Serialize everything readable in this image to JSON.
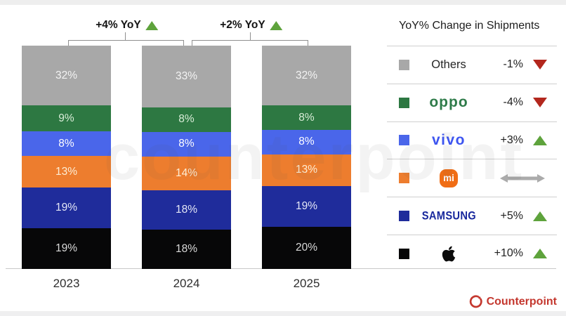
{
  "chart_data": {
    "type": "bar",
    "stacked": true,
    "unit": "percent",
    "value_suffix": "%",
    "categories": [
      "2023",
      "2024",
      "2025"
    ],
    "series_order": "top-to-bottom",
    "series": [
      {
        "name": "Others",
        "color": "#a8a8a8",
        "label_color": "#f3f3f3",
        "values": [
          32,
          33,
          32
        ]
      },
      {
        "name": "OPPO",
        "color": "#2d7842",
        "label_color": "#d9edd8",
        "values": [
          9,
          8,
          8
        ]
      },
      {
        "name": "vivo",
        "color": "#4a66ea",
        "label_color": "#ffffff",
        "values": [
          8,
          8,
          8
        ]
      },
      {
        "name": "Xiaomi",
        "color": "#ed7d2e",
        "label_color": "#fdeed6",
        "values": [
          13,
          14,
          13
        ]
      },
      {
        "name": "Samsung",
        "color": "#1f2c9b",
        "label_color": "#e4e7f6",
        "values": [
          19,
          18,
          19
        ]
      },
      {
        "name": "Apple",
        "color": "#070708",
        "label_color": "#d9d9d9",
        "values": [
          19,
          18,
          20
        ]
      }
    ],
    "annotations": [
      {
        "label": "+4% YoY",
        "between": [
          "2023",
          "2024"
        ],
        "direction": "up"
      },
      {
        "label": "+2% YoY",
        "between": [
          "2024",
          "2025"
        ],
        "direction": "up"
      }
    ]
  },
  "legend": {
    "title": "YoY% Change in Shipments",
    "rows": [
      {
        "name": "Others",
        "swatch": "#a8a8a8",
        "change": "-1%",
        "direction": "down"
      },
      {
        "name": "OPPO",
        "swatch": "#2d7842",
        "change": "-4%",
        "direction": "down",
        "logo_text": "oppo"
      },
      {
        "name": "vivo",
        "swatch": "#4a66ea",
        "change": "+3%",
        "direction": "up",
        "logo_text": "vivo"
      },
      {
        "name": "Xiaomi",
        "swatch": "#ed7d2e",
        "change": "",
        "direction": "flat",
        "logo_text": "mi"
      },
      {
        "name": "Samsung",
        "swatch": "#1f2c9b",
        "change": "+5%",
        "direction": "up",
        "logo_text": "SAMSUNG"
      },
      {
        "name": "Apple",
        "swatch": "#070708",
        "change": "+10%",
        "direction": "up"
      }
    ]
  },
  "branding": {
    "watermark": "counterpoint",
    "logo_text": "Counterpoint",
    "logo_color": "#c4372e"
  },
  "colors": {
    "up_triangle": "#5ea33c",
    "down_triangle": "#b3271d",
    "flat_arrow": "#ababab",
    "bracket_line": "#8f8f8f",
    "separator": "#cfcfcf"
  }
}
